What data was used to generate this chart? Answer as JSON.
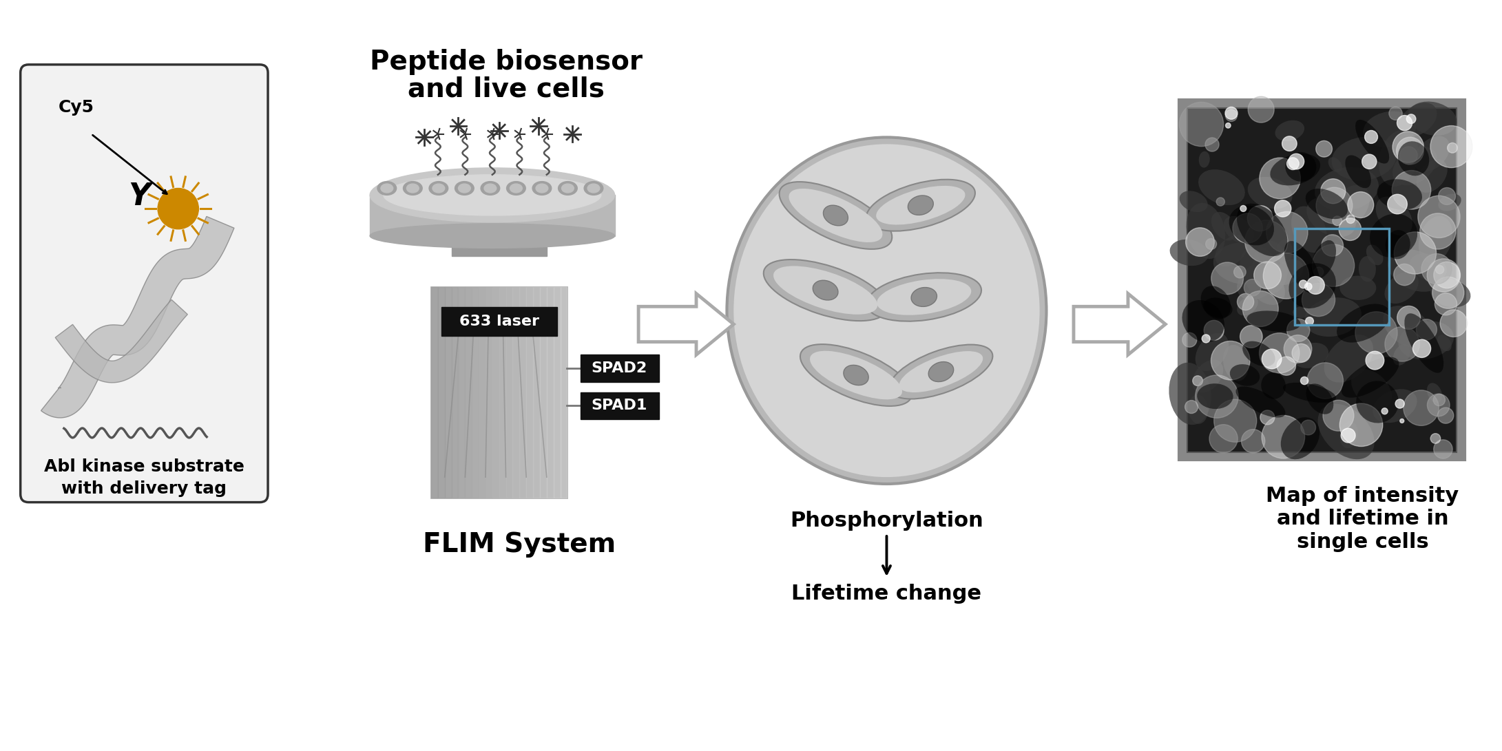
{
  "bg_color": "#ffffff",
  "panel1": {
    "label_cy5": "Cy5",
    "label_y": "Y",
    "label_bottom1": "Abl kinase substrate",
    "label_bottom2": "with delivery tag",
    "box_facecolor": "#f2f2f2",
    "box_edgecolor": "#333333",
    "sun_color": "#cc8800",
    "ribbon_color": "#aaaaaa"
  },
  "panel2": {
    "title_line1": "Peptide biosensor",
    "title_line2": "and live cells",
    "label_laser": "633 laser",
    "label_spad2": "SPAD2",
    "label_spad1": "SPAD1",
    "label_bottom": "FLIM System",
    "dish_color": "#bbbbbb",
    "body_color": "#aaaaaa",
    "box_bg": "#111111",
    "box_text": "#ffffff"
  },
  "panel3": {
    "ellipse_color": "#cccccc",
    "cell_color": "#b8b8b8",
    "cell_inner": "#d8d8d8",
    "label_phosphorylation": "Phosphorylation",
    "label_lifetime": "Lifetime change"
  },
  "panel4": {
    "outer_color": "#909090",
    "inner_bg": "#222222",
    "label_line1": "Map of intensity",
    "label_line2": "and lifetime in",
    "label_line3": "single cells"
  },
  "arrow_fill": "#ffffff",
  "arrow_edge": "#aaaaaa",
  "text_color": "#000000",
  "font_size_title": 28,
  "font_size_label": 22,
  "font_size_small": 18,
  "font_size_box": 16
}
